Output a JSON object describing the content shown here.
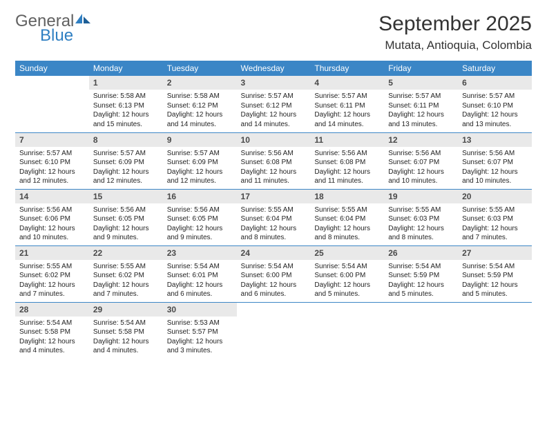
{
  "logo": {
    "general": "General",
    "blue": "Blue"
  },
  "title": "September 2025",
  "location": "Mutata, Antioquia, Colombia",
  "colors": {
    "header_bg": "#3b86c6",
    "header_text": "#ffffff",
    "daynum_bg": "#e9e9e9",
    "daynum_text": "#4a4a4a",
    "rule": "#3b86c6",
    "logo_general": "#616161",
    "logo_blue": "#2f7fc2",
    "body_text": "#222222",
    "page_bg": "#ffffff"
  },
  "weekdays": [
    "Sunday",
    "Monday",
    "Tuesday",
    "Wednesday",
    "Thursday",
    "Friday",
    "Saturday"
  ],
  "weeks": [
    [
      null,
      {
        "n": "1",
        "sr": "5:58 AM",
        "ss": "6:13 PM",
        "dl": "12 hours and 15 minutes."
      },
      {
        "n": "2",
        "sr": "5:58 AM",
        "ss": "6:12 PM",
        "dl": "12 hours and 14 minutes."
      },
      {
        "n": "3",
        "sr": "5:57 AM",
        "ss": "6:12 PM",
        "dl": "12 hours and 14 minutes."
      },
      {
        "n": "4",
        "sr": "5:57 AM",
        "ss": "6:11 PM",
        "dl": "12 hours and 14 minutes."
      },
      {
        "n": "5",
        "sr": "5:57 AM",
        "ss": "6:11 PM",
        "dl": "12 hours and 13 minutes."
      },
      {
        "n": "6",
        "sr": "5:57 AM",
        "ss": "6:10 PM",
        "dl": "12 hours and 13 minutes."
      }
    ],
    [
      {
        "n": "7",
        "sr": "5:57 AM",
        "ss": "6:10 PM",
        "dl": "12 hours and 12 minutes."
      },
      {
        "n": "8",
        "sr": "5:57 AM",
        "ss": "6:09 PM",
        "dl": "12 hours and 12 minutes."
      },
      {
        "n": "9",
        "sr": "5:57 AM",
        "ss": "6:09 PM",
        "dl": "12 hours and 12 minutes."
      },
      {
        "n": "10",
        "sr": "5:56 AM",
        "ss": "6:08 PM",
        "dl": "12 hours and 11 minutes."
      },
      {
        "n": "11",
        "sr": "5:56 AM",
        "ss": "6:08 PM",
        "dl": "12 hours and 11 minutes."
      },
      {
        "n": "12",
        "sr": "5:56 AM",
        "ss": "6:07 PM",
        "dl": "12 hours and 10 minutes."
      },
      {
        "n": "13",
        "sr": "5:56 AM",
        "ss": "6:07 PM",
        "dl": "12 hours and 10 minutes."
      }
    ],
    [
      {
        "n": "14",
        "sr": "5:56 AM",
        "ss": "6:06 PM",
        "dl": "12 hours and 10 minutes."
      },
      {
        "n": "15",
        "sr": "5:56 AM",
        "ss": "6:05 PM",
        "dl": "12 hours and 9 minutes."
      },
      {
        "n": "16",
        "sr": "5:56 AM",
        "ss": "6:05 PM",
        "dl": "12 hours and 9 minutes."
      },
      {
        "n": "17",
        "sr": "5:55 AM",
        "ss": "6:04 PM",
        "dl": "12 hours and 8 minutes."
      },
      {
        "n": "18",
        "sr": "5:55 AM",
        "ss": "6:04 PM",
        "dl": "12 hours and 8 minutes."
      },
      {
        "n": "19",
        "sr": "5:55 AM",
        "ss": "6:03 PM",
        "dl": "12 hours and 8 minutes."
      },
      {
        "n": "20",
        "sr": "5:55 AM",
        "ss": "6:03 PM",
        "dl": "12 hours and 7 minutes."
      }
    ],
    [
      {
        "n": "21",
        "sr": "5:55 AM",
        "ss": "6:02 PM",
        "dl": "12 hours and 7 minutes."
      },
      {
        "n": "22",
        "sr": "5:55 AM",
        "ss": "6:02 PM",
        "dl": "12 hours and 7 minutes."
      },
      {
        "n": "23",
        "sr": "5:54 AM",
        "ss": "6:01 PM",
        "dl": "12 hours and 6 minutes."
      },
      {
        "n": "24",
        "sr": "5:54 AM",
        "ss": "6:00 PM",
        "dl": "12 hours and 6 minutes."
      },
      {
        "n": "25",
        "sr": "5:54 AM",
        "ss": "6:00 PM",
        "dl": "12 hours and 5 minutes."
      },
      {
        "n": "26",
        "sr": "5:54 AM",
        "ss": "5:59 PM",
        "dl": "12 hours and 5 minutes."
      },
      {
        "n": "27",
        "sr": "5:54 AM",
        "ss": "5:59 PM",
        "dl": "12 hours and 5 minutes."
      }
    ],
    [
      {
        "n": "28",
        "sr": "5:54 AM",
        "ss": "5:58 PM",
        "dl": "12 hours and 4 minutes."
      },
      {
        "n": "29",
        "sr": "5:54 AM",
        "ss": "5:58 PM",
        "dl": "12 hours and 4 minutes."
      },
      {
        "n": "30",
        "sr": "5:53 AM",
        "ss": "5:57 PM",
        "dl": "12 hours and 3 minutes."
      },
      null,
      null,
      null,
      null
    ]
  ],
  "labels": {
    "sunrise": "Sunrise:",
    "sunset": "Sunset:",
    "daylight": "Daylight:"
  }
}
